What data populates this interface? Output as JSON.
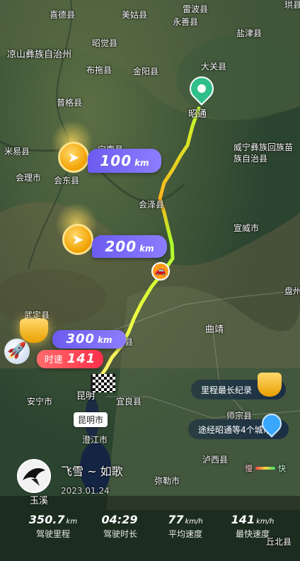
{
  "map": {
    "labels": [
      {
        "id": "xide",
        "text": "喜德县"
      },
      {
        "id": "meigu",
        "text": "美姑县"
      },
      {
        "id": "leibo",
        "text": "雷波县"
      },
      {
        "id": "yongshan",
        "text": "永善县"
      },
      {
        "id": "yanjin",
        "text": "盐津县"
      },
      {
        "id": "liangshan",
        "text": "凉山彝族自治州"
      },
      {
        "id": "zhaojue",
        "text": "昭觉县"
      },
      {
        "id": "butuo",
        "text": "布拖县"
      },
      {
        "id": "jinyang",
        "text": "金阳县"
      },
      {
        "id": "daguan",
        "text": "大关县"
      },
      {
        "id": "puge",
        "text": "普格县"
      },
      {
        "id": "zhaotong",
        "text": "昭通"
      },
      {
        "id": "miyi",
        "text": "米易县"
      },
      {
        "id": "ningnan",
        "text": "宁南县"
      },
      {
        "id": "weining",
        "text": "威宁彝族回族苗族自治县"
      },
      {
        "id": "huili",
        "text": "会理市"
      },
      {
        "id": "huidong",
        "text": "会东县"
      },
      {
        "id": "huize",
        "text": "会泽县"
      },
      {
        "id": "xuanwei",
        "text": "宣威市"
      },
      {
        "id": "panzhou",
        "text": "盘州"
      },
      {
        "id": "wuding",
        "text": "武定县"
      },
      {
        "id": "qujing",
        "text": "曲靖"
      },
      {
        "id": "songming",
        "text": "县"
      },
      {
        "id": "anning",
        "text": "安宁市"
      },
      {
        "id": "kunming",
        "text": "昆明"
      },
      {
        "id": "yiliang",
        "text": "宜良县"
      },
      {
        "id": "kunming_city",
        "text": "昆明市"
      },
      {
        "id": "chengjiang",
        "text": "澄江市"
      },
      {
        "id": "shizong",
        "text": "师宗县"
      },
      {
        "id": "luxi",
        "text": "泸西县"
      },
      {
        "id": "yuxi",
        "text": "玉溪"
      },
      {
        "id": "mile",
        "text": "弥勒市"
      },
      {
        "id": "qiubei",
        "text": "丘北县"
      },
      {
        "id": "gongxian",
        "text": "珙县"
      }
    ]
  },
  "milestones": [
    {
      "value": "100",
      "unit": "km"
    },
    {
      "value": "200",
      "unit": "km"
    },
    {
      "value": "300",
      "unit": "km"
    }
  ],
  "speed_badge": {
    "label": "时速",
    "value": "141"
  },
  "highlights": {
    "longest": "里程最长纪录",
    "cities": "途经昭通等4个城市"
  },
  "legend": {
    "slow": "慢",
    "fast": "快"
  },
  "user": {
    "name": "飞雪 ~ 如歌",
    "date": "2023.01.24"
  },
  "stats": [
    {
      "value": "350.7",
      "unit": "km",
      "label": "驾驶里程"
    },
    {
      "value": "04:29",
      "unit": "",
      "label": "驾驶时长"
    },
    {
      "value": "77",
      "unit": "km/h",
      "label": "平均速度"
    },
    {
      "value": "141",
      "unit": "km/h",
      "label": "最快速度"
    }
  ],
  "colors": {
    "route_start": "#aaff2b",
    "route_mid": "#ffb21a",
    "route_end": "#fff06a",
    "pin": "#2fbf8a"
  }
}
